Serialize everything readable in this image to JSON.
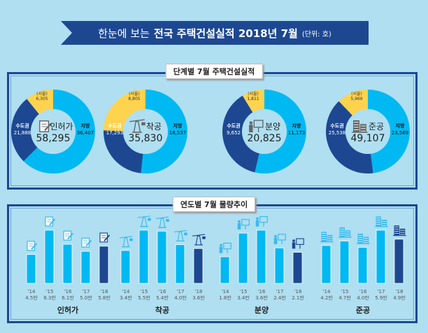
{
  "header": {
    "title_light": "한눈에 보는",
    "title_bold": "전국 주택건설실적 2018년 7월",
    "unit": "(단위: 호)"
  },
  "section1": {
    "label": "단계별 7월 주택건설실적"
  },
  "section2": {
    "label": "연도별 7월 물량추이"
  },
  "colors": {
    "local": "#00b9f2",
    "capital": "#1d4891",
    "seoul": "#ffd34e",
    "bg": "#afdff1"
  },
  "chart_data": [
    {
      "type": "pie",
      "title": "단계별 7월 주택건설실적",
      "donuts": [
        {
          "name": "인허가",
          "icon": "document-pen-icon",
          "total": "58,295",
          "local_label": "지방",
          "local": "36,407",
          "capital_label": "수도권",
          "capital": "21,888",
          "seoul_label": "(서울)",
          "seoul": "6,305",
          "values": {
            "local": 36407,
            "capital": 21888,
            "seoul": 6305
          }
        },
        {
          "name": "착공",
          "icon": "crane-icon",
          "total": "35,830",
          "local_label": "지방",
          "local": "18,537",
          "capital_label": "수도권",
          "capital": "17,293",
          "seoul_label": "(서울)",
          "seoul": "8,805",
          "values": {
            "local": 18537,
            "capital": 17293,
            "seoul": 8805
          }
        },
        {
          "name": "분양",
          "icon": "presentation-icon",
          "total": "20,825",
          "local_label": "지방",
          "local": "11,173",
          "capital_label": "수도권",
          "capital": "9,652",
          "seoul_label": "(서울)",
          "seoul": "1,811",
          "values": {
            "local": 11173,
            "capital": 9652,
            "seoul": 1811
          }
        },
        {
          "name": "준공",
          "icon": "building-icon",
          "total": "49,107",
          "local_label": "지방",
          "local": "23,569",
          "capital_label": "수도권",
          "capital": "25,538",
          "seoul_label": "(서울)",
          "seoul": "5,969",
          "values": {
            "local": 23569,
            "capital": 25538,
            "seoul": 5969
          }
        }
      ]
    },
    {
      "type": "bar",
      "title": "연도별 7월 물량추이",
      "unit": "만",
      "groups": [
        {
          "name": "인허가",
          "icon": "document-pen-icon",
          "categories": [
            "'14",
            "'15",
            "'16",
            "'17",
            "'18"
          ],
          "labels": [
            "4.5만",
            "8.3만",
            "6.1만",
            "5.0만",
            "5.8만"
          ],
          "values": [
            4.5,
            8.3,
            6.1,
            5.0,
            5.8
          ]
        },
        {
          "name": "착공",
          "icon": "crane-icon",
          "categories": [
            "'14",
            "'15",
            "'16",
            "'17",
            "'18"
          ],
          "labels": [
            "3.4만",
            "5.5만",
            "5.4만",
            "4.0만",
            "3.6만"
          ],
          "values": [
            3.4,
            5.5,
            5.4,
            4.0,
            3.6
          ]
        },
        {
          "name": "분양",
          "icon": "presentation-icon",
          "categories": [
            "'14",
            "'15",
            "'16",
            "'17",
            "'18"
          ],
          "labels": [
            "1.8만",
            "3.4만",
            "3.6만",
            "2.4만",
            "2.1만"
          ],
          "values": [
            1.8,
            3.4,
            3.6,
            2.4,
            2.1
          ]
        },
        {
          "name": "준공",
          "icon": "building-icon",
          "categories": [
            "'14",
            "'15",
            "'16",
            "'17",
            "'18"
          ],
          "labels": [
            "4.2만",
            "4.7만",
            "4.0만",
            "5.9만",
            "4.9만"
          ],
          "values": [
            4.2,
            4.7,
            4.0,
            5.9,
            4.9
          ]
        }
      ]
    }
  ]
}
